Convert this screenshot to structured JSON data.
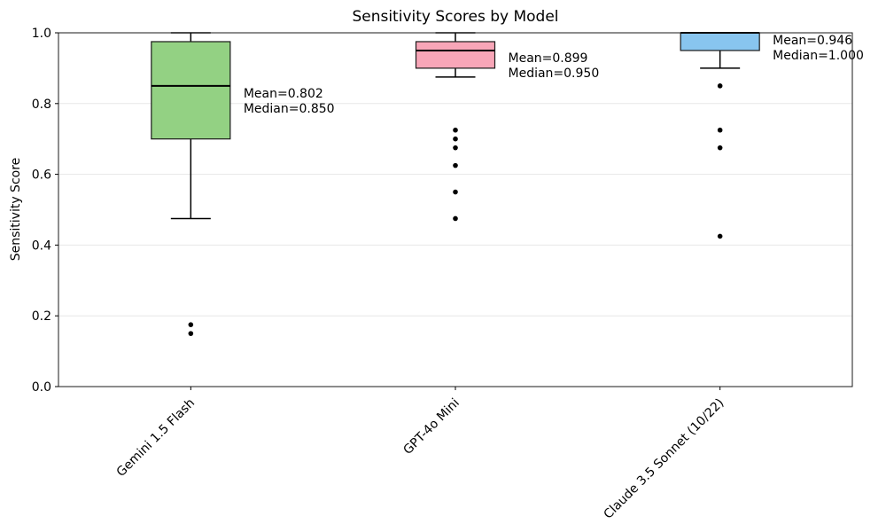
{
  "chart_data": {
    "type": "boxplot",
    "title": "Sensitivity Scores by Model",
    "ylabel": "Sensitivity Score",
    "xlabel": "",
    "ylim": [
      0.0,
      1.0
    ],
    "yticks": [
      0.0,
      0.2,
      0.4,
      0.6,
      0.8,
      1.0
    ],
    "ytick_labels": [
      "0.0",
      "0.2",
      "0.4",
      "0.6",
      "0.8",
      "1.0"
    ],
    "grid": "horizontal",
    "grid_color": "#e7e7e7",
    "frame_color": "#1a1a1a",
    "categories": [
      "Gemini 1.5 Flash",
      "GPT-4o Mini",
      "Claude 3.5 Sonnet (10/22)"
    ],
    "series": [
      {
        "label": "Gemini 1.5 Flash",
        "box_color": "#93d183",
        "whislo": 0.475,
        "q1": 0.7,
        "med": 0.85,
        "q3": 0.975,
        "whishi": 1.0,
        "outliers": [
          0.175,
          0.15
        ],
        "mean": 0.802,
        "median": 0.85,
        "annotation_mean": "Mean=0.802",
        "annotation_median": "Median=0.850"
      },
      {
        "label": "GPT-4o Mini",
        "box_color": "#f8a6b8",
        "whislo": 0.875,
        "q1": 0.9,
        "med": 0.95,
        "q3": 0.975,
        "whishi": 1.0,
        "outliers": [
          0.725,
          0.7,
          0.675,
          0.625,
          0.55,
          0.475
        ],
        "mean": 0.899,
        "median": 0.95,
        "annotation_mean": "Mean=0.899",
        "annotation_median": "Median=0.950"
      },
      {
        "label": "Claude 3.5 Sonnet (10/22)",
        "box_color": "#88c5ef",
        "whislo": 0.9,
        "q1": 0.95,
        "med": 1.0,
        "q3": 1.0,
        "whishi": 1.0,
        "outliers": [
          0.85,
          0.725,
          0.675,
          0.425
        ],
        "mean": 0.946,
        "median": 1.0,
        "annotation_mean": "Mean=0.946",
        "annotation_median": "Median=1.000"
      }
    ]
  }
}
